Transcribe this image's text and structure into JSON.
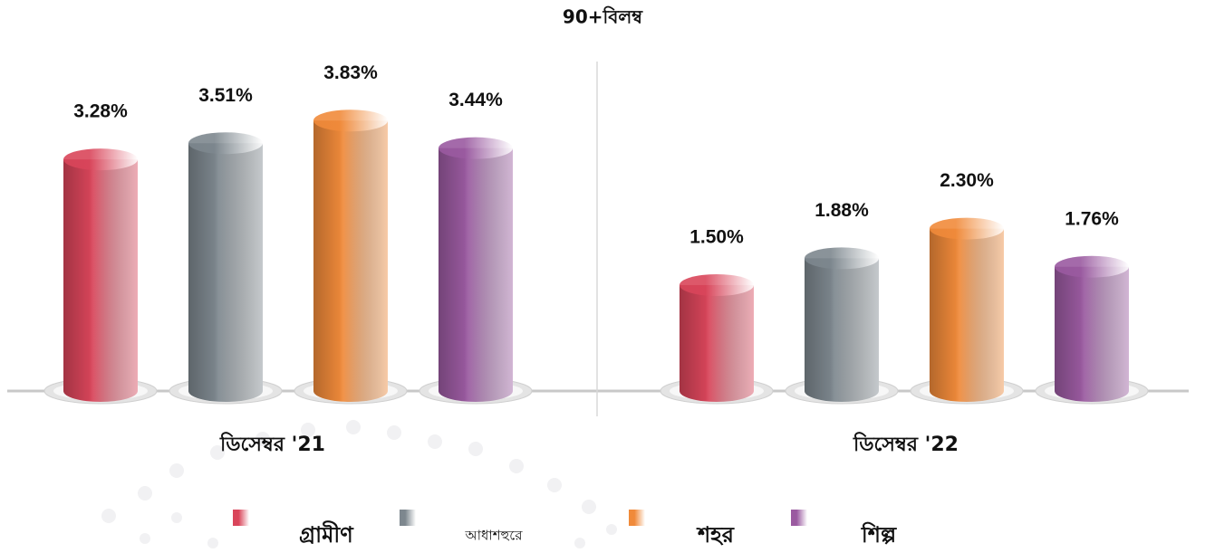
{
  "chart_data": {
    "type": "bar",
    "title": "90+বিলম্ব",
    "categories": [
      "ডিসেম্বর '21",
      "ডিসেম্বর '22"
    ],
    "series": [
      {
        "name": "গ্রামীণ",
        "color": "#d9455a",
        "values": [
          3.28,
          1.5
        ],
        "value_labels": [
          "3.28%",
          "1.50%"
        ]
      },
      {
        "name": "আধাশহুরে",
        "color": "#7d878e",
        "values": [
          3.51,
          1.88
        ],
        "value_labels": [
          "3.51%",
          "1.88%"
        ]
      },
      {
        "name": "শহর",
        "color": "#f08a3a",
        "values": [
          3.83,
          2.3
        ],
        "value_labels": [
          "3.83%",
          "2.30%"
        ]
      },
      {
        "name": "শিল্প",
        "color": "#9a5aa0",
        "values": [
          3.44,
          1.76
        ],
        "value_labels": [
          "3.44%",
          "1.76%"
        ]
      }
    ]
  }
}
